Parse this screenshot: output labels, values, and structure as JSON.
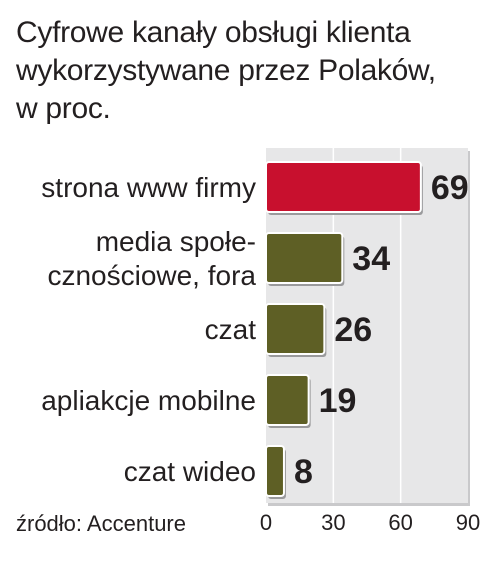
{
  "title_lines": [
    "Cyfrowe kanały obsługi klienta",
    "wykorzystywane przez Polaków,",
    "w proc."
  ],
  "source": "źródło: Accenture",
  "colors": {
    "highlight": "#c8102e",
    "bar": "#5e5f25",
    "plot_background": "#e7e7e8",
    "grid": "#ffffff"
  },
  "chart_data": {
    "type": "bar",
    "orientation": "horizontal",
    "categories": [
      [
        "strona www firmy"
      ],
      [
        "media społe-",
        "cznościowe, fora"
      ],
      [
        "czat"
      ],
      [
        "apliakcje mobilne"
      ],
      [
        "czat wideo"
      ]
    ],
    "values": [
      69,
      34,
      26,
      19,
      8
    ],
    "highlight_index": 0,
    "xlim": [
      0,
      90
    ],
    "xticks": [
      0,
      30,
      60,
      90
    ],
    "grid": true,
    "title": "Cyfrowe kanały obsługi klienta wykorzystywane przez Polaków, w proc.",
    "xlabel": "",
    "ylabel": ""
  }
}
